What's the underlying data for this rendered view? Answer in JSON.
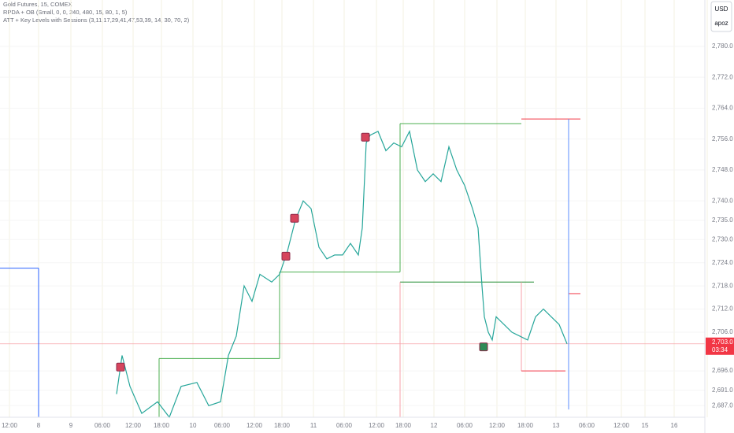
{
  "chart_data": {
    "type": "line",
    "title": "Gold Futures, 15, COMEX",
    "indicators": [
      "RPDA + OB (Small, 0, 0, 240, 480, 15, 80, 1, 5)",
      "ATT + Key Levels with Sessions (3,11,17,29,41,47,53,39, 14, 30, 70, 2)"
    ],
    "currency": "USD",
    "user": "apoz",
    "grid": true,
    "color": "#26a69a",
    "x": [
      148,
      155,
      165,
      180,
      200,
      215,
      230,
      250,
      265,
      280,
      290,
      300,
      310,
      320,
      330,
      345,
      355,
      365,
      375,
      385,
      395,
      405,
      415,
      425,
      435,
      445,
      455,
      460,
      465,
      470,
      480,
      490,
      500,
      510,
      520,
      530,
      540,
      550,
      560,
      570,
      580,
      590,
      600,
      607,
      612,
      615,
      620,
      625,
      630,
      640,
      650,
      660,
      670,
      680,
      690,
      700,
      710,
      720
    ],
    "values": [
      2690,
      2700,
      2692,
      2685,
      2688,
      2684,
      2692,
      2693,
      2687,
      2688,
      2700,
      2705,
      2718,
      2714,
      2721,
      2719,
      2721,
      2727,
      2735,
      2740,
      2738,
      2728,
      2725,
      2726,
      2726,
      2729,
      2726,
      2733,
      2755,
      2757,
      2758,
      2753,
      2755,
      2754,
      2758,
      2748,
      2745,
      2747,
      2745,
      2754,
      2748,
      2744,
      2738,
      2733,
      2718,
      2710,
      2706,
      2704,
      2710,
      2708,
      2706,
      2705,
      2704,
      2710,
      2712,
      2710,
      2708,
      2703
    ],
    "xlim": [
      0,
      895
    ],
    "ylim": [
      2684,
      2792
    ],
    "xticks": [
      {
        "value": 12,
        "label": "12:00"
      },
      {
        "value": 49,
        "label": "8"
      },
      {
        "value": 90,
        "label": "9"
      },
      {
        "value": 130,
        "label": "06:00"
      },
      {
        "value": 169,
        "label": "12:00"
      },
      {
        "value": 205,
        "label": "18:00"
      },
      {
        "value": 245,
        "label": "10"
      },
      {
        "value": 282,
        "label": "06:00"
      },
      {
        "value": 323,
        "label": "12:00"
      },
      {
        "value": 358,
        "label": "18:00"
      },
      {
        "value": 398,
        "label": "11"
      },
      {
        "value": 437,
        "label": "06:00"
      },
      {
        "value": 478,
        "label": "12:00"
      },
      {
        "value": 512,
        "label": "18:00"
      },
      {
        "value": 551,
        "label": "12"
      },
      {
        "value": 590,
        "label": "06:00"
      },
      {
        "value": 631,
        "label": "12:00"
      },
      {
        "value": 667,
        "label": "18:00"
      },
      {
        "value": 706,
        "label": "13"
      },
      {
        "value": 745,
        "label": "06:00"
      },
      {
        "value": 789,
        "label": "12:00"
      },
      {
        "value": 819,
        "label": "15"
      },
      {
        "value": 856,
        "label": "16"
      },
      {
        "value": 898,
        "label": "06:00"
      }
    ],
    "yticks": [
      {
        "value": 2780,
        "label": "2,780.0"
      },
      {
        "value": 2772,
        "label": "2,772.0"
      },
      {
        "value": 2764,
        "label": "2,764.0"
      },
      {
        "value": 2756,
        "label": "2,756.0"
      },
      {
        "value": 2748,
        "label": "2,748.0"
      },
      {
        "value": 2740,
        "label": "2,740.0"
      },
      {
        "value": 2735,
        "label": "2,735.0"
      },
      {
        "value": 2730,
        "label": "2,730.0"
      },
      {
        "value": 2724,
        "label": "2,724.0"
      },
      {
        "value": 2718,
        "label": "2,718.0"
      },
      {
        "value": 2712,
        "label": "2,712.0"
      },
      {
        "value": 2706,
        "label": "2,706.0"
      },
      {
        "value": 2696,
        "label": "2,696.0"
      },
      {
        "value": 2691,
        "label": "2,691.0"
      },
      {
        "value": 2687,
        "label": "2,687.0"
      }
    ],
    "last_price": {
      "value": 2703,
      "label": "2,703.0"
    },
    "countdown": "03:34",
    "segments": [
      {
        "color": "#4caf50",
        "x": [
          202,
          355
        ],
        "y": [
          2699.2,
          2699.2
        ]
      },
      {
        "color": "#4caf50",
        "x": [
          355,
          355
        ],
        "y": [
          2699.2,
          2721.6
        ]
      },
      {
        "color": "#4caf50",
        "x": [
          355,
          508
        ],
        "y": [
          2721.6,
          2721.6
        ]
      },
      {
        "color": "#4caf50",
        "x": [
          508,
          508
        ],
        "y": [
          2721.6,
          2760
        ]
      },
      {
        "color": "#4caf50",
        "x": [
          508,
          662
        ],
        "y": [
          2760,
          2760
        ]
      },
      {
        "color": "#4caf50",
        "x": [
          202,
          202
        ],
        "y": [
          2684,
          2699.2
        ]
      },
      {
        "color": "#f23645",
        "x": [
          662,
          737
        ],
        "y": [
          2761.2,
          2761.2
        ]
      },
      {
        "color": "#f23645",
        "x": [
          722,
          737
        ],
        "y": [
          2716,
          2716
        ]
      },
      {
        "color": "#1b8a2e",
        "x": [
          508,
          678
        ],
        "y": [
          2719,
          2719
        ]
      },
      {
        "color": "#f7a1a8",
        "x": [
          508,
          508
        ],
        "y": [
          2684,
          2719
        ]
      },
      {
        "color": "#f7a1a8",
        "x": [
          662,
          662
        ],
        "y": [
          2696,
          2719
        ]
      },
      {
        "color": "#f23645",
        "x": [
          662,
          718
        ],
        "y": [
          2696,
          2696
        ]
      },
      {
        "color": "#2962ff",
        "x": [
          0,
          49
        ],
        "y": [
          2722.6,
          2722.6
        ]
      },
      {
        "color": "#2962ff",
        "x": [
          49,
          49
        ],
        "y": [
          2684,
          2722.6
        ]
      },
      {
        "color": "#5b8cff",
        "x": [
          722,
          722
        ],
        "y": [
          2686,
          2761.2
        ]
      }
    ],
    "markers": [
      {
        "x": 153,
        "y": 2697,
        "color": "#d6455d"
      },
      {
        "x": 363,
        "y": 2725.7,
        "color": "#d6455d"
      },
      {
        "x": 374,
        "y": 2735.5,
        "color": "#d6455d"
      },
      {
        "x": 464,
        "y": 2756.5,
        "color": "#d6455d"
      },
      {
        "x": 614,
        "y": 2702.2,
        "color": "#2e8b57"
      }
    ]
  }
}
